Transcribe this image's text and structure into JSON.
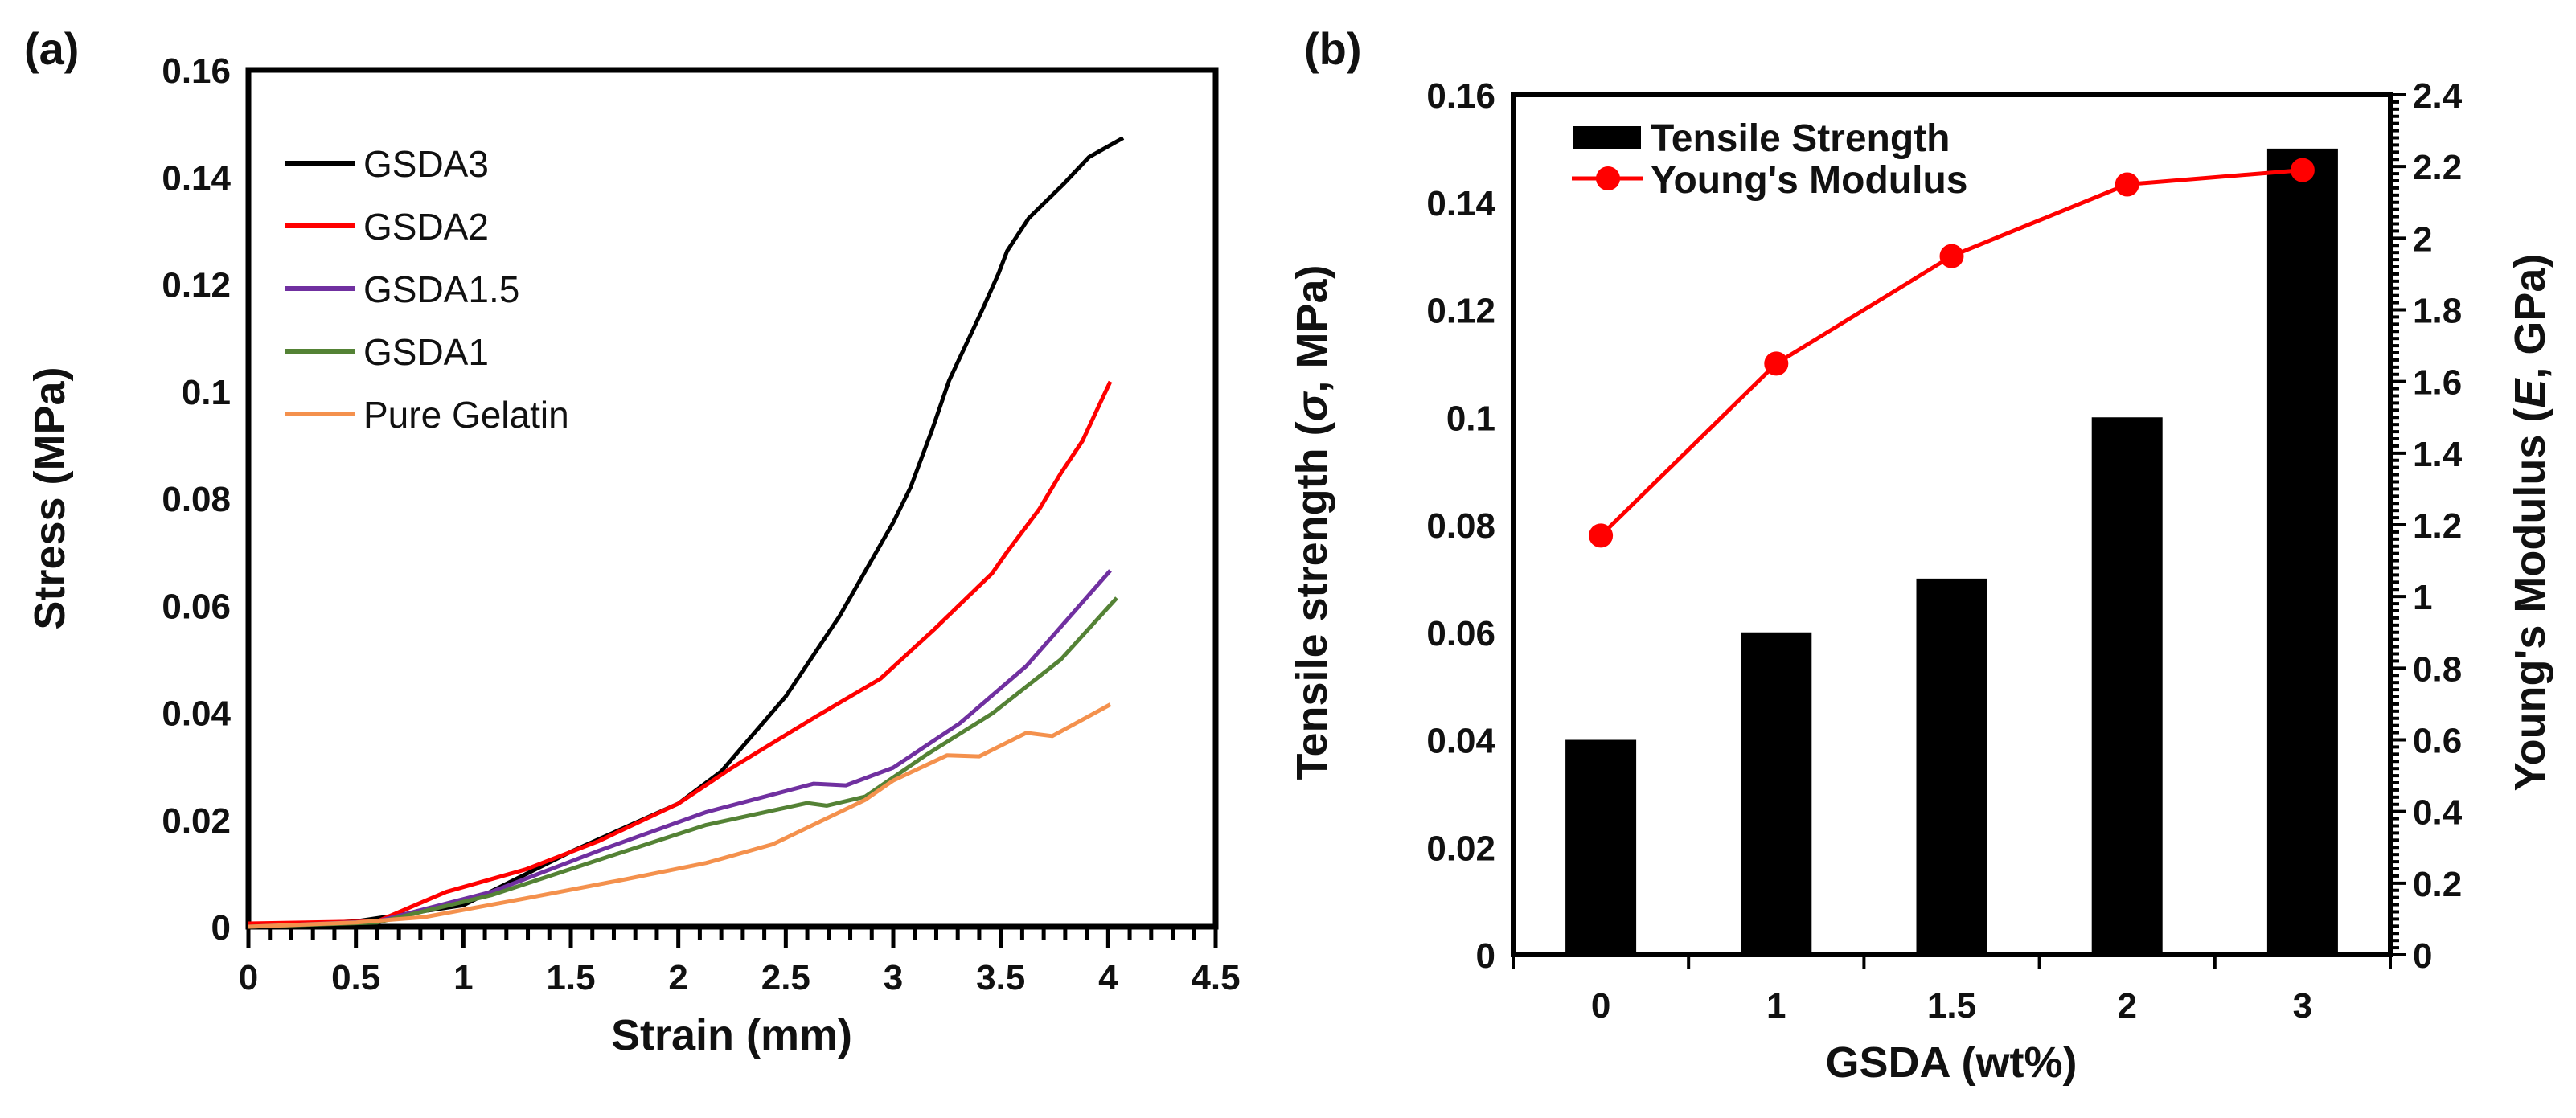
{
  "chart_data": [
    {
      "panel_label": "(a)",
      "type": "line",
      "xlabel": "Strain (mm)",
      "ylabel": "Stress (MPa)",
      "xlim": [
        0,
        4.5
      ],
      "ylim": [
        0,
        0.16
      ],
      "x_ticks": [
        "0",
        "0.5",
        "1",
        "1.5",
        "2",
        "2.5",
        "3",
        "3.5",
        "4",
        "4.5"
      ],
      "y_ticks": [
        "0",
        "0.02",
        "0.04",
        "0.06",
        "0.08",
        "0.1",
        "0.12",
        "0.14",
        "0.16"
      ],
      "grid": false,
      "legend_position": "top-left",
      "series": [
        {
          "name": "GSDA3",
          "color": "#000000",
          "x": [
            0,
            0.5,
            1.0,
            1.5,
            2.0,
            2.2,
            2.5,
            2.75,
            3.0,
            3.08,
            3.18,
            3.26,
            3.41,
            3.49,
            3.53,
            3.63,
            3.79,
            3.91,
            4.07
          ],
          "y": [
            0,
            0.001,
            0.004,
            0.014,
            0.023,
            0.029,
            0.043,
            0.058,
            0.0755,
            0.082,
            0.0927,
            0.102,
            0.1148,
            0.122,
            0.1262,
            0.1323,
            0.1386,
            0.1437,
            0.1473
          ]
        },
        {
          "name": "GSDA2",
          "color": "#ff0000",
          "x": [
            0,
            0.6,
            0.92,
            1.29,
            1.63,
            2.0,
            2.25,
            2.63,
            2.94,
            3.19,
            3.46,
            3.53,
            3.68,
            3.78,
            3.88,
            3.95,
            4.01
          ],
          "y": [
            0.0006,
            0.001,
            0.0065,
            0.0107,
            0.016,
            0.023,
            0.0297,
            0.039,
            0.0463,
            0.0555,
            0.066,
            0.07,
            0.078,
            0.0847,
            0.0907,
            0.0967,
            0.1018
          ]
        },
        {
          "name": "GSDA1.5",
          "color": "#7030a0",
          "x": [
            0,
            0.6,
            1.13,
            1.63,
            2.13,
            2.63,
            2.78,
            3.0,
            3.31,
            3.62,
            4.01
          ],
          "y": [
            0,
            0.001,
            0.0065,
            0.0142,
            0.0214,
            0.0267,
            0.0264,
            0.0297,
            0.038,
            0.0487,
            0.0665
          ]
        },
        {
          "name": "GSDA1",
          "color": "#548235",
          "x": [
            0,
            0.6,
            1.13,
            1.63,
            2.13,
            2.6,
            2.69,
            2.87,
            3.15,
            3.46,
            3.78,
            4.04
          ],
          "y": [
            0,
            0.0008,
            0.0059,
            0.0125,
            0.019,
            0.0231,
            0.0226,
            0.0243,
            0.032,
            0.0398,
            0.0499,
            0.0614
          ]
        },
        {
          "name": "Pure Gelatin",
          "color": "#f4914d",
          "x": [
            0,
            0.5,
            0.82,
            1.29,
            1.76,
            2.13,
            2.44,
            2.87,
            3.0,
            3.25,
            3.4,
            3.62,
            3.74,
            4.01
          ],
          "y": [
            0,
            0.0008,
            0.0018,
            0.0053,
            0.0089,
            0.0119,
            0.0154,
            0.0237,
            0.0273,
            0.032,
            0.0318,
            0.0362,
            0.0356,
            0.0415
          ]
        }
      ]
    },
    {
      "panel_label": "(b)",
      "type": "bar",
      "xlabel": "GSDA (wt%)",
      "ylabel": "Tensile strength (σ, MPa)",
      "ylabel_parts": [
        "Tensile strength (",
        "σ",
        ", MPa)"
      ],
      "y2label": "Young's Modulus (E, GPa)",
      "y2label_parts": [
        "Young's Modulus (",
        "E",
        ", GPa)"
      ],
      "categories": [
        "0",
        "1",
        "1.5",
        "2",
        "3"
      ],
      "ylim": [
        0,
        0.16
      ],
      "y2lim": [
        0,
        2.4
      ],
      "y_ticks": [
        "0",
        "0.02",
        "0.04",
        "0.06",
        "0.08",
        "0.1",
        "0.12",
        "0.14",
        "0.16"
      ],
      "y2_ticks": [
        "0",
        "0.2",
        "0.4",
        "0.6",
        "0.8",
        "1",
        "1.2",
        "1.4",
        "1.6",
        "1.8",
        "2",
        "2.2",
        "2.4"
      ],
      "grid": false,
      "legend_position": "top-left",
      "series": [
        {
          "name": "Tensile Strength",
          "type": "bar",
          "axis": "left",
          "color": "#000000",
          "values": [
            0.04,
            0.06,
            0.07,
            0.1,
            0.15
          ]
        },
        {
          "name": "Young's Modulus",
          "type": "line",
          "axis": "right",
          "color": "#ff0000",
          "values": [
            1.17,
            1.65,
            1.95,
            2.15,
            2.19
          ]
        }
      ]
    }
  ]
}
